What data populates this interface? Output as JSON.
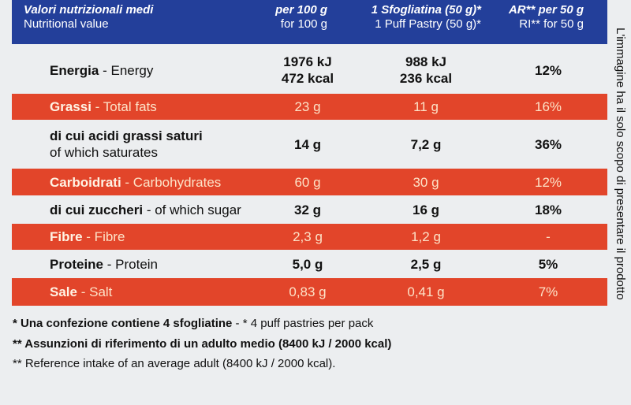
{
  "header": {
    "columns": [
      [
        "Valori nutrizionali medi",
        "Nutritional value"
      ],
      [
        "per 100 g",
        "for 100 g"
      ],
      [
        "1 Sfogliatina (50 g)*",
        "1 Puff Pastry (50 g)*"
      ],
      [
        "AR** per 50 g",
        "RI** for 50 g"
      ]
    ]
  },
  "table": {
    "rows": [
      {
        "it": "Energia",
        "en": "- Energy",
        "values": [
          [
            "1976 kJ",
            "472 kcal"
          ],
          [
            "988 kJ",
            "236 kcal"
          ],
          "12%"
        ]
      },
      {
        "it": "Grassi",
        "en": "- Total fats",
        "values": [
          "23 g",
          "11 g",
          "16%"
        ]
      },
      {
        "it": "di cui acidi grassi saturi",
        "en": "of which saturates",
        "values": [
          "14 g",
          "7,2 g",
          "36%"
        ]
      },
      {
        "it": "Carboidrati",
        "en": "- Carbohydrates",
        "values": [
          "60 g",
          "30 g",
          "12%"
        ]
      },
      {
        "it": "di cui zuccheri",
        "en": "- of which sugar",
        "values": [
          "32 g",
          "16 g",
          "18%"
        ]
      },
      {
        "it": "Fibre",
        "en": "- Fibre",
        "values": [
          "2,3 g",
          "1,2 g",
          "-"
        ]
      },
      {
        "it": "Proteine",
        "en": "- Protein",
        "values": [
          "5,0 g",
          "2,5 g",
          "5%"
        ]
      },
      {
        "it": "Sale",
        "en": "- Salt",
        "values": [
          "0,83 g",
          "0,41 g",
          "7%"
        ]
      }
    ]
  },
  "footnotes": [
    {
      "bold": "* Una confezione contiene 4 sfogliatine",
      "text": " - * 4 puff pastries per pack"
    },
    {
      "bold": "** Assunzioni di riferimento di un adulto medio (8400 kJ / 2000 kcal)"
    },
    {
      "text": "** Reference intake of an average adult (8400 kJ / 2000 kcal)."
    }
  ],
  "side_note": "L'immagine ha il solo scopo di presentare il prodotto"
}
